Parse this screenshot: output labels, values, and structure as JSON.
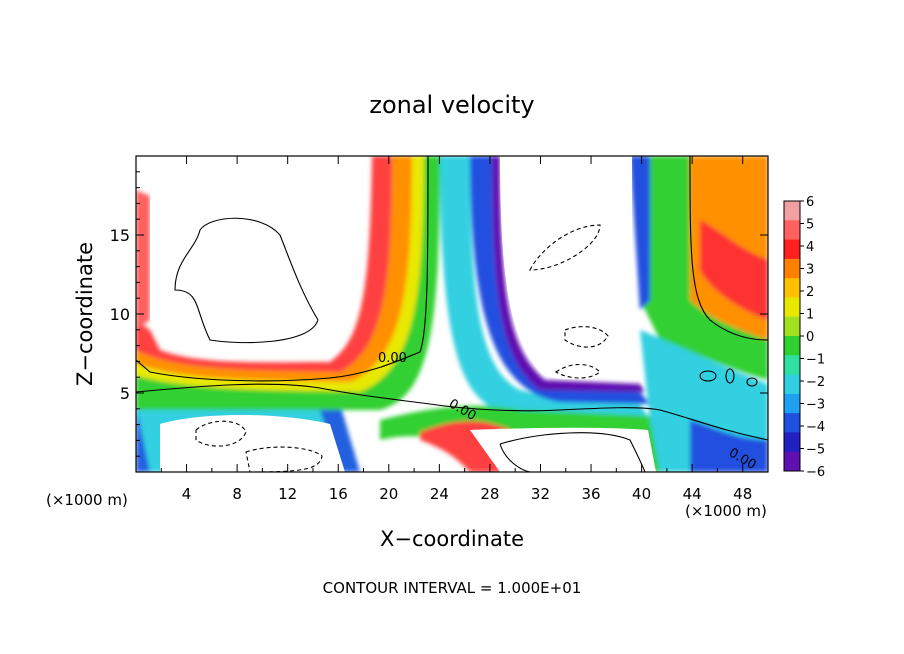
{
  "chart_data": {
    "type": "heatmap",
    "title": "zonal velocity",
    "xlabel": "X−coordinate",
    "ylabel": "Z−coordinate",
    "x_unit_left": "(×1000 m)",
    "x_unit_right": "(×1000 m)",
    "footer": "CONTOUR INTERVAL = 1.000E+01",
    "xlim": [
      0,
      50
    ],
    "ylim": [
      0,
      20
    ],
    "x_ticks": [
      "4",
      "8",
      "12",
      "16",
      "20",
      "24",
      "28",
      "32",
      "36",
      "40",
      "44",
      "48"
    ],
    "y_ticks": [
      "5",
      "10",
      "15"
    ],
    "colorbar": {
      "min": -6,
      "max": 6,
      "labels": [
        "6",
        "5",
        "4",
        "3",
        "2",
        "1",
        "0",
        "−1",
        "−2",
        "−3",
        "−4",
        "−5",
        "−6"
      ],
      "colors": [
        "#f0a0a0",
        "#ff6060",
        "#ff2020",
        "#ff8000",
        "#ffc000",
        "#e8e800",
        "#a0e020",
        "#30d030",
        "#30e0a0",
        "#30d0e0",
        "#20a0f0",
        "#2050e0",
        "#2020c0",
        "#6010b0"
      ]
    },
    "contour_labels": [
      "0.00",
      "0.00",
      "0.00"
    ]
  }
}
